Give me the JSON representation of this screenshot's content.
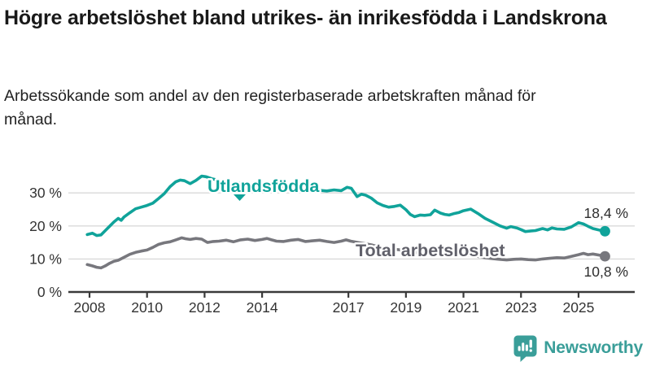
{
  "header": {
    "title": "Högre arbetslöshet bland utrikes- än inrikesfödda i Landskrona",
    "subtitle": "Arbetssökande som andel av den registerbaserade arbetskraften månad för månad."
  },
  "branding": {
    "logo_text": "Newsworthy",
    "logo_color": "#3a9e99"
  },
  "colors": {
    "foreign_born_line": "#10a39a",
    "total_line": "#77777d",
    "total_label": "#60606a",
    "grid": "#d9d9d9",
    "axis": "#3a3a3a",
    "axis_text": "#333333",
    "value_label_text": "#2d2d2d"
  },
  "chart_data": {
    "type": "line",
    "title": "Högre arbetslöshet bland utrikes- än inrikesfödda i Landskrona",
    "subtitle": "Arbetssökande som andel av den registerbaserade arbetskraften månad för månad.",
    "x_axis": {
      "tick_years": [
        2008,
        2010,
        2012,
        2014,
        2017,
        2019,
        2021,
        2023,
        2025
      ],
      "tick_labels": [
        "2008",
        "2010",
        "2012",
        "2014",
        "2017",
        "2019",
        "2021",
        "2023",
        "2025"
      ],
      "range": [
        2007.9,
        2026.2
      ]
    },
    "y_axis": {
      "tick_values": [
        0,
        10,
        20,
        30
      ],
      "tick_labels": [
        "0 %",
        "10 %",
        "20 %",
        "30 %"
      ],
      "range": [
        0,
        37
      ],
      "grid": true
    },
    "series": [
      {
        "name": "Utlandsfödda",
        "color": "#10a39a",
        "label_color": "#10a39a",
        "end_label": "18,4 %",
        "end_value": 18.4,
        "points": [
          [
            2007.92,
            17.4
          ],
          [
            2008.1,
            17.8
          ],
          [
            2008.25,
            17.1
          ],
          [
            2008.4,
            17.3
          ],
          [
            2008.55,
            18.6
          ],
          [
            2008.7,
            19.9
          ],
          [
            2008.85,
            21.2
          ],
          [
            2009.0,
            22.3
          ],
          [
            2009.1,
            21.7
          ],
          [
            2009.2,
            22.7
          ],
          [
            2009.4,
            24.0
          ],
          [
            2009.6,
            25.2
          ],
          [
            2009.8,
            25.7
          ],
          [
            2010.0,
            26.2
          ],
          [
            2010.2,
            26.9
          ],
          [
            2010.4,
            28.3
          ],
          [
            2010.6,
            29.8
          ],
          [
            2010.8,
            31.9
          ],
          [
            2011.0,
            33.4
          ],
          [
            2011.15,
            33.9
          ],
          [
            2011.3,
            33.7
          ],
          [
            2011.5,
            32.8
          ],
          [
            2011.7,
            33.8
          ],
          [
            2011.9,
            35.1
          ],
          [
            2012.05,
            34.9
          ],
          [
            2012.25,
            34.3
          ],
          [
            2012.5,
            33.8
          ],
          [
            2012.75,
            33.2
          ],
          [
            2013.0,
            32.8
          ],
          [
            2013.25,
            33.0
          ],
          [
            2013.5,
            32.5
          ],
          [
            2013.75,
            32.2
          ],
          [
            2014.0,
            32.4
          ],
          [
            2014.25,
            31.9
          ],
          [
            2014.5,
            31.6
          ],
          [
            2014.75,
            31.8
          ],
          [
            2015.0,
            31.3
          ],
          [
            2015.25,
            31.5
          ],
          [
            2015.5,
            31.0
          ],
          [
            2015.75,
            30.9
          ],
          [
            2016.0,
            30.8
          ],
          [
            2016.25,
            30.6
          ],
          [
            2016.5,
            30.9
          ],
          [
            2016.75,
            30.7
          ],
          [
            2016.95,
            31.7
          ],
          [
            2017.1,
            31.4
          ],
          [
            2017.3,
            28.9
          ],
          [
            2017.45,
            29.6
          ],
          [
            2017.6,
            29.3
          ],
          [
            2017.8,
            28.4
          ],
          [
            2018.0,
            27.0
          ],
          [
            2018.2,
            26.2
          ],
          [
            2018.4,
            25.7
          ],
          [
            2018.6,
            25.9
          ],
          [
            2018.8,
            26.3
          ],
          [
            2019.0,
            24.9
          ],
          [
            2019.15,
            23.5
          ],
          [
            2019.3,
            22.8
          ],
          [
            2019.5,
            23.3
          ],
          [
            2019.65,
            23.2
          ],
          [
            2019.85,
            23.4
          ],
          [
            2020.0,
            24.8
          ],
          [
            2020.2,
            23.9
          ],
          [
            2020.35,
            23.5
          ],
          [
            2020.5,
            23.3
          ],
          [
            2020.65,
            23.7
          ],
          [
            2020.85,
            24.1
          ],
          [
            2021.0,
            24.6
          ],
          [
            2021.25,
            25.1
          ],
          [
            2021.5,
            23.8
          ],
          [
            2021.75,
            22.3
          ],
          [
            2022.0,
            21.2
          ],
          [
            2022.25,
            20.1
          ],
          [
            2022.5,
            19.3
          ],
          [
            2022.65,
            19.8
          ],
          [
            2022.85,
            19.4
          ],
          [
            2023.0,
            18.9
          ],
          [
            2023.15,
            18.3
          ],
          [
            2023.35,
            18.5
          ],
          [
            2023.5,
            18.6
          ],
          [
            2023.75,
            19.2
          ],
          [
            2023.92,
            18.8
          ],
          [
            2024.08,
            19.4
          ],
          [
            2024.25,
            19.1
          ],
          [
            2024.5,
            19.0
          ],
          [
            2024.75,
            19.7
          ],
          [
            2025.0,
            21.0
          ],
          [
            2025.17,
            20.6
          ],
          [
            2025.33,
            19.9
          ],
          [
            2025.5,
            19.2
          ],
          [
            2025.75,
            18.7
          ],
          [
            2025.92,
            18.4
          ]
        ]
      },
      {
        "name": "Total arbetslöshet",
        "color": "#77777d",
        "label_color": "#60606a",
        "end_label": "10,8 %",
        "end_value": 10.8,
        "points": [
          [
            2007.92,
            8.3
          ],
          [
            2008.1,
            7.9
          ],
          [
            2008.25,
            7.5
          ],
          [
            2008.4,
            7.3
          ],
          [
            2008.55,
            7.9
          ],
          [
            2008.7,
            8.7
          ],
          [
            2008.85,
            9.3
          ],
          [
            2009.0,
            9.6
          ],
          [
            2009.2,
            10.5
          ],
          [
            2009.4,
            11.4
          ],
          [
            2009.6,
            12.0
          ],
          [
            2009.8,
            12.4
          ],
          [
            2010.0,
            12.7
          ],
          [
            2010.2,
            13.5
          ],
          [
            2010.4,
            14.4
          ],
          [
            2010.6,
            14.9
          ],
          [
            2010.8,
            15.2
          ],
          [
            2011.0,
            15.8
          ],
          [
            2011.2,
            16.4
          ],
          [
            2011.35,
            16.1
          ],
          [
            2011.5,
            15.9
          ],
          [
            2011.7,
            16.2
          ],
          [
            2011.9,
            16.0
          ],
          [
            2012.1,
            15.0
          ],
          [
            2012.3,
            15.3
          ],
          [
            2012.5,
            15.4
          ],
          [
            2012.75,
            15.7
          ],
          [
            2013.0,
            15.2
          ],
          [
            2013.25,
            15.8
          ],
          [
            2013.5,
            16.0
          ],
          [
            2013.75,
            15.6
          ],
          [
            2014.0,
            15.9
          ],
          [
            2014.17,
            16.2
          ],
          [
            2014.33,
            15.8
          ],
          [
            2014.5,
            15.4
          ],
          [
            2014.75,
            15.3
          ],
          [
            2015.0,
            15.7
          ],
          [
            2015.25,
            15.9
          ],
          [
            2015.5,
            15.3
          ],
          [
            2015.75,
            15.5
          ],
          [
            2016.0,
            15.7
          ],
          [
            2016.25,
            15.3
          ],
          [
            2016.5,
            15.0
          ],
          [
            2016.75,
            15.4
          ],
          [
            2016.92,
            15.8
          ],
          [
            2017.08,
            15.4
          ],
          [
            2017.33,
            15.0
          ],
          [
            2017.58,
            14.6
          ],
          [
            2017.83,
            14.2
          ],
          [
            2018.0,
            13.8
          ],
          [
            2018.25,
            13.4
          ],
          [
            2018.5,
            13.0
          ],
          [
            2018.75,
            12.8
          ],
          [
            2019.0,
            12.4
          ],
          [
            2019.25,
            12.0
          ],
          [
            2019.5,
            11.8
          ],
          [
            2019.75,
            11.9
          ],
          [
            2020.0,
            12.2
          ],
          [
            2020.25,
            12.5
          ],
          [
            2020.5,
            12.1
          ],
          [
            2020.75,
            11.7
          ],
          [
            2021.0,
            11.4
          ],
          [
            2021.25,
            11.1
          ],
          [
            2021.5,
            10.8
          ],
          [
            2021.75,
            10.4
          ],
          [
            2022.0,
            10.1
          ],
          [
            2022.25,
            9.9
          ],
          [
            2022.5,
            9.7
          ],
          [
            2022.75,
            9.9
          ],
          [
            2023.0,
            10.0
          ],
          [
            2023.25,
            9.8
          ],
          [
            2023.5,
            9.7
          ],
          [
            2023.75,
            10.0
          ],
          [
            2024.0,
            10.2
          ],
          [
            2024.25,
            10.4
          ],
          [
            2024.5,
            10.3
          ],
          [
            2024.75,
            10.8
          ],
          [
            2025.0,
            11.3
          ],
          [
            2025.17,
            11.7
          ],
          [
            2025.33,
            11.3
          ],
          [
            2025.5,
            11.5
          ],
          [
            2025.75,
            11.1
          ],
          [
            2025.92,
            10.8
          ]
        ]
      }
    ]
  }
}
